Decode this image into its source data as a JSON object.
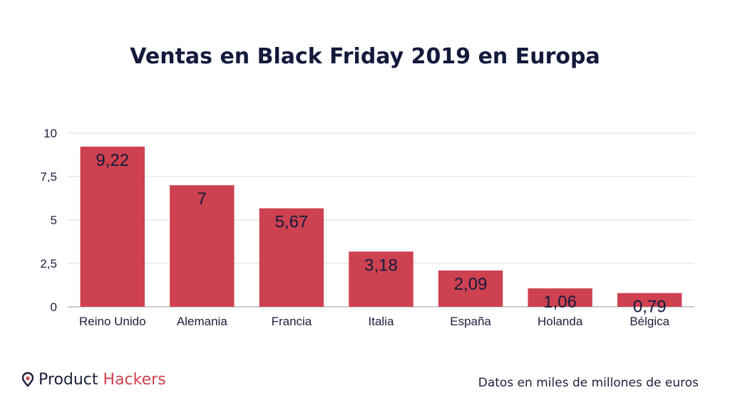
{
  "chart_data": {
    "type": "bar",
    "title": "Ventas en Black Friday 2019 en Europa",
    "categories": [
      "Reino Unido",
      "Alemania",
      "Francia",
      "Italia",
      "España",
      "Holanda",
      "Bélgica"
    ],
    "values": [
      9.22,
      7,
      5.67,
      3.18,
      2.09,
      1.06,
      0.79
    ],
    "value_labels": [
      "9,22",
      "7",
      "5,67",
      "3,18",
      "2,09",
      "1,06",
      "0,79"
    ],
    "ylim": [
      0,
      10
    ],
    "yticks": [
      0,
      2.5,
      5,
      7.5,
      10
    ],
    "ytick_labels": [
      "0",
      "2,5",
      "5",
      "7,5",
      "10"
    ],
    "xlabel": "",
    "ylabel": "",
    "grid": true,
    "bar_color": "#cd4150"
  },
  "brand": {
    "name_part1": "Product",
    "name_part2": "Hackers",
    "icon": "location-pin-icon",
    "accent_color": "#d0414e"
  },
  "footnote": "Datos en miles de millones de euros"
}
